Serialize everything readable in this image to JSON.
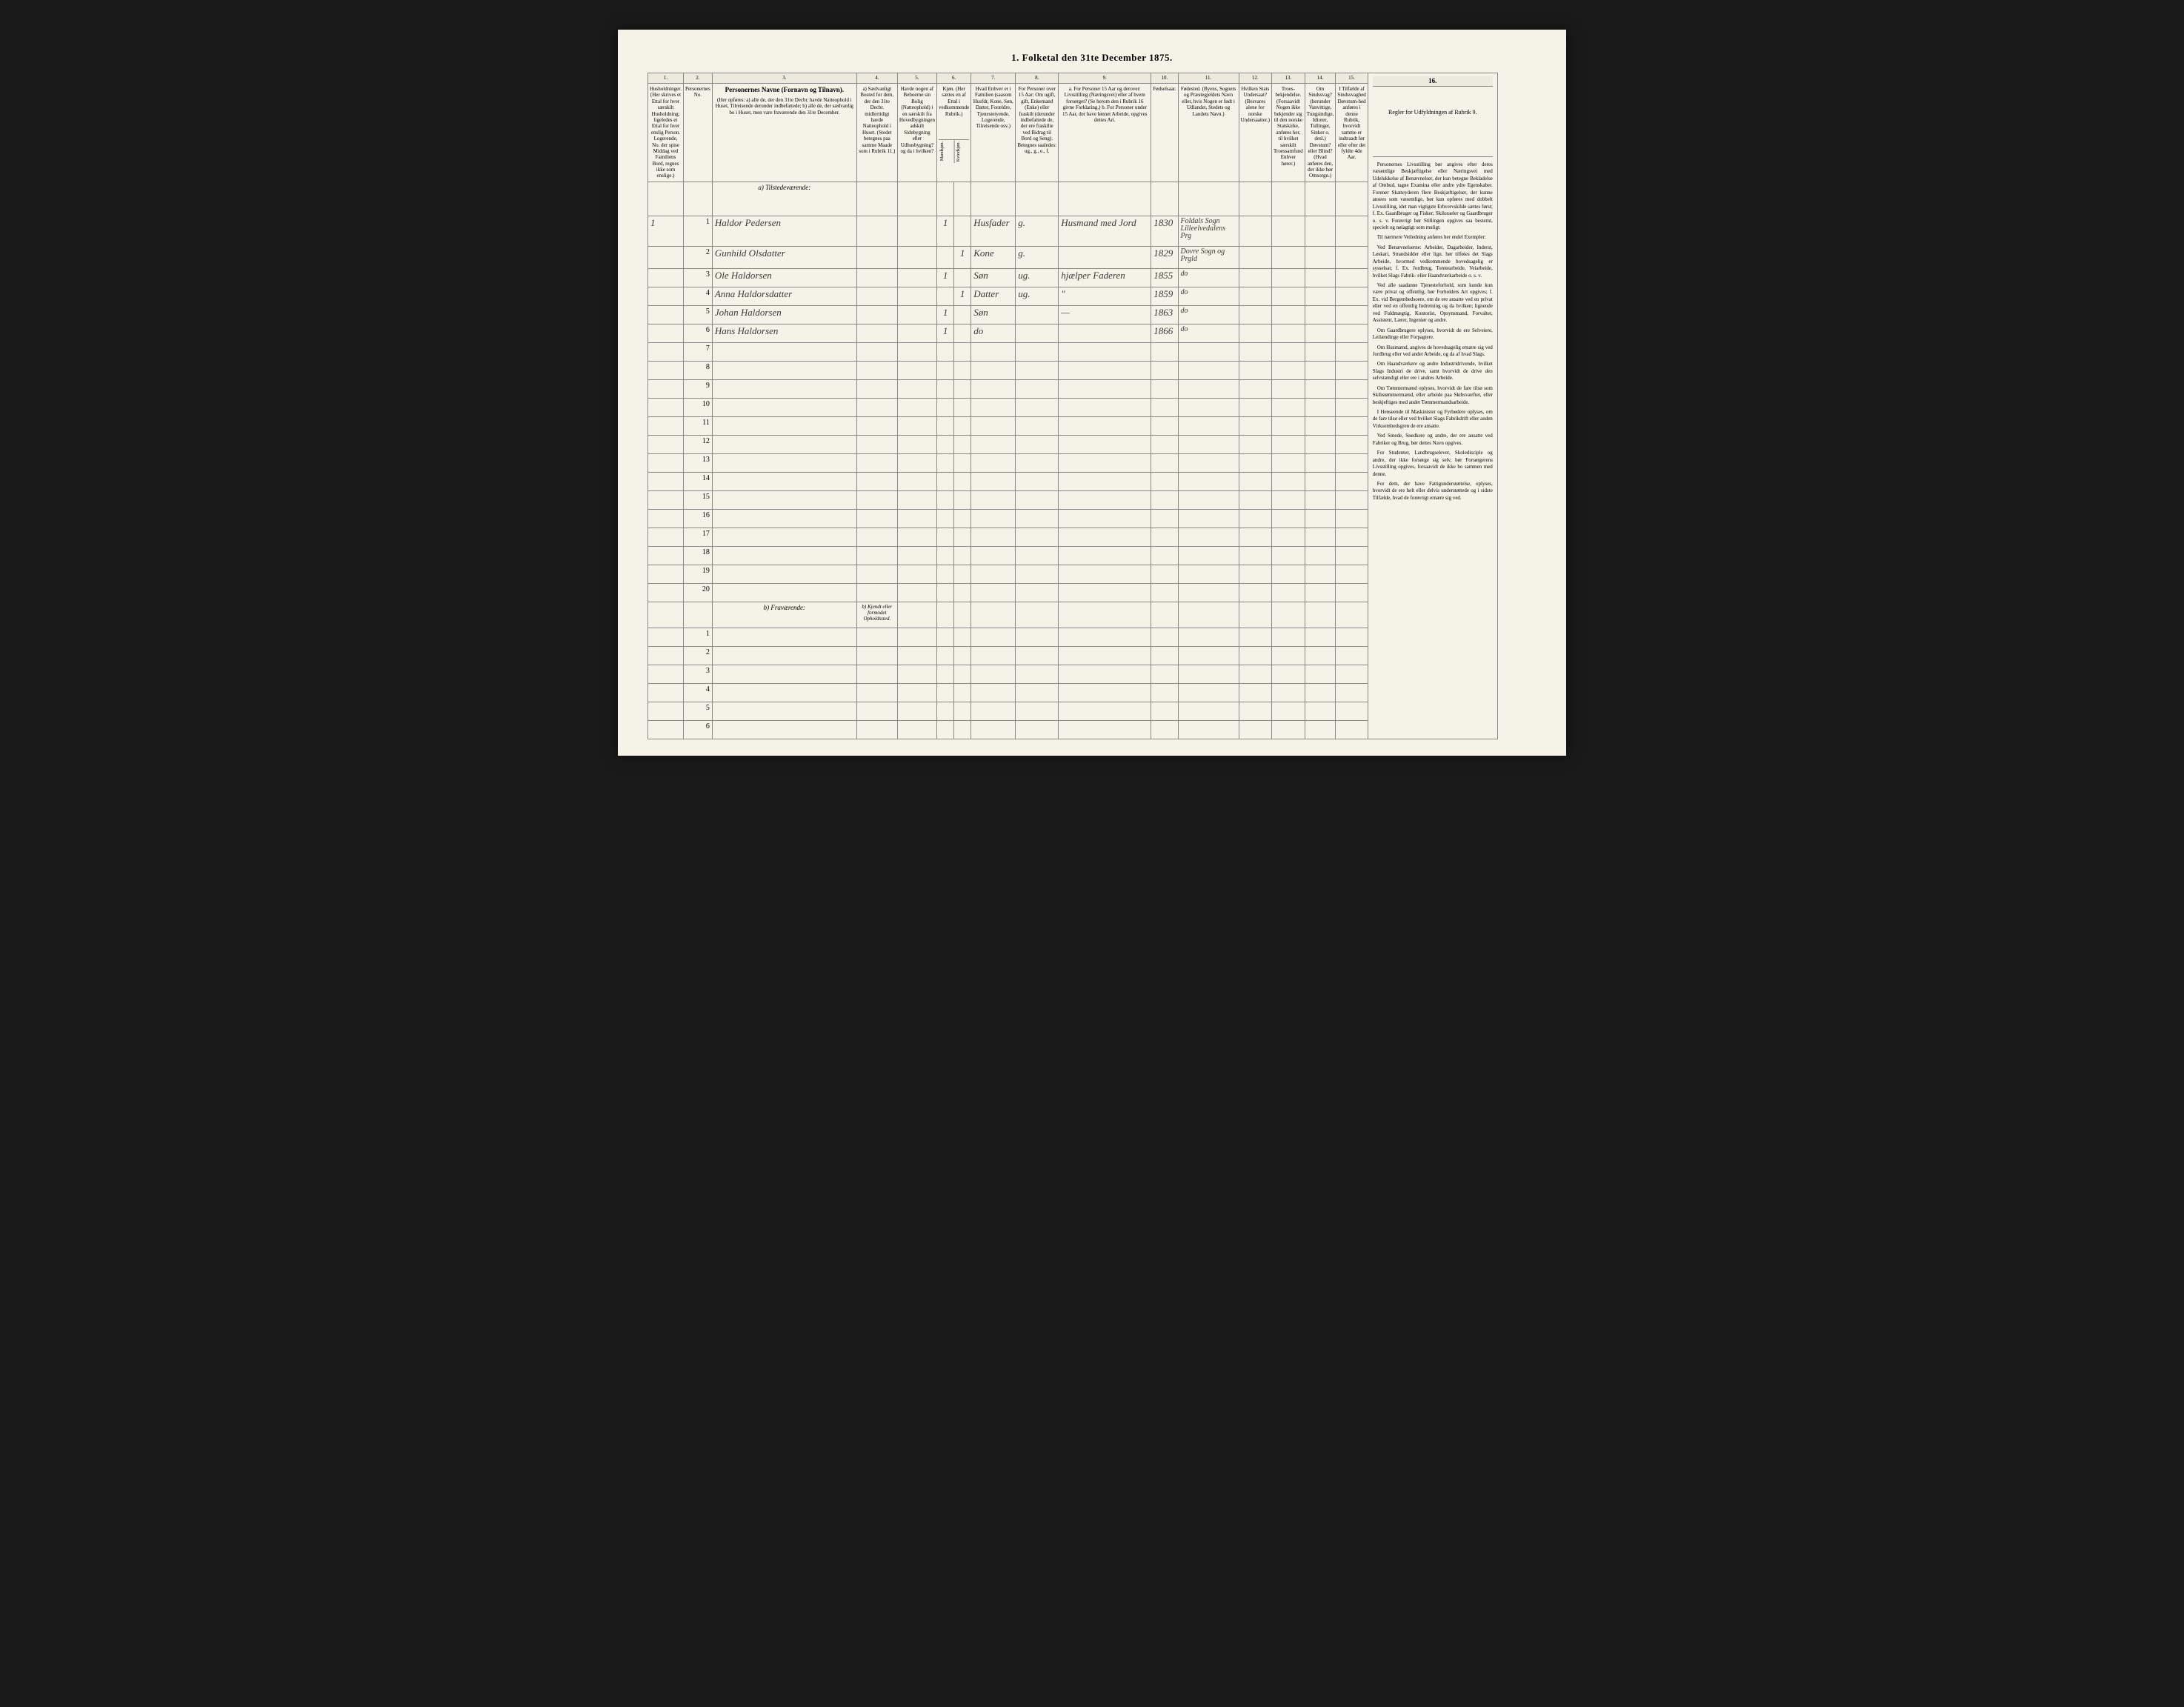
{
  "document": {
    "title": "1. Folketal den 31te December 1875.",
    "background_color": "#f5f2e8",
    "border_color": "#888888",
    "text_color": "#2a2a2a",
    "handwriting_color": "#3a3a3a"
  },
  "columns": {
    "numbers": [
      "1.",
      "2.",
      "3.",
      "4.",
      "5.",
      "6.",
      "7.",
      "8.",
      "9.",
      "10.",
      "11.",
      "12.",
      "13.",
      "14.",
      "15.",
      "16."
    ],
    "headers": {
      "col1": "Husholdninger. (Her skrives et Ettal for hver særskilt Husholdning; ligeledes et Ettal for hver enslig Person. Logerende, No. der spise Middag ved Familiens Bord, regnes ikke som enslige.)",
      "col2": "Personernes No.",
      "col3_title": "Personernes Navne (Fornavn og Tilnavn).",
      "col3_sub": "(Her opføres: a) alle de, der den 31te Decbr. havde Natteophold i Huset, Tilreisende derunder indbefattede; b) alle de, der sædvanlig bo i Huset, men vare fraværende den 31te December.",
      "col4": "a) Sædvanligt Bosted for dem, der den 31te Decbr. midlertidigt havde Natteophold i Huset. (Stedet betegnes paa samme Maade som i Rubrik 11.)",
      "col5": "Havde nogen af Beboerne sin Bolig (Natteophold) i en særskilt fra Hovedbygningen adskilt Sidebygning eller Udhusbygning? og da i hvilken?",
      "col6": "Kjøn. (Her sættes en af Ettal i vedkommende Rubrik.)",
      "col6_m": "Mandkjøn.",
      "col6_k": "Kvindkjøn.",
      "col7": "Hvad Enhver er i Familien (saasom Husfdr, Kone, Søn, Datter, Forældre, Tjenestetyende, Logerende, Tilreisende osv.)",
      "col8": "For Personer over 15 Aar: Om ugift, gift, Enkemand (Enke) eller fraskilt (derunder indbefattede de, der ere fraskilte ved Bidrag til Bord og Seng). Betegnes saaledes: ug., g., e., f.",
      "col9": "a. For Personer 15 Aar og derover: Livsstilling (Næringsvei) eller af hvem forsørget? (Se herom den i Rubrik 16 givne Forklaring.) b. For Personer under 15 Aar, der have lønnet Arbeide, opgives dettes Art.",
      "col10": "Fødselsaar.",
      "col11": "Fødested. (Byens, Sognets og Præstegjeldets Navn eller, hvis Nogen er født i Udlandet, Stedets og Landets Navn.)",
      "col12": "Hvilken Stats Undersaat? (Besvares alene for norske Undersaatter.)",
      "col13": "Troes-bekjendelse. (Forsaavidt Nogen ikke bekjender sig til den norske Statskirke, anføres her, til hvilket særskilt Troessamfund Enhver hører.)",
      "col14": "Om Sindssvag? (herunder Vanvittige, Tungsindige, Idioter, Tullinger, Sinker o. desl.) Døvstum? eller Blind? (Hvad anføres den, der ikke hør Omsorgn.)",
      "col15": "I Tilfælde af Sindssvaghed Døvstum-hed anføres i denne Rubrik, hvorvidt samme er indtraadt før eller efter det fyldte 4de Aar.",
      "col16": "Regler for Udfyldningen af Rubrik 9."
    }
  },
  "sections": {
    "present": "a) Tilstedeværende:",
    "absent": "b) Fraværende:",
    "absent_col4": "b) Kjendt eller formodet Opholdssted."
  },
  "persons": [
    {
      "row": 1,
      "hh": "1",
      "pno": "1",
      "name": "Haldor Pedersen",
      "sex_m": "1",
      "sex_k": "",
      "relation": "Husfader",
      "marital": "g.",
      "occupation": "Husmand med Jord",
      "birth": "1830",
      "birthplace": "Foldals Sogn Lilleelvedalens Prg"
    },
    {
      "row": 2,
      "hh": "",
      "pno": "2",
      "name": "Gunhild Olsdatter",
      "sex_m": "",
      "sex_k": "1",
      "relation": "Kone",
      "marital": "g.",
      "occupation": "",
      "birth": "1829",
      "birthplace": "Dovre Sogn og Prgld"
    },
    {
      "row": 3,
      "hh": "",
      "pno": "3",
      "name": "Ole Haldorsen",
      "sex_m": "1",
      "sex_k": "",
      "relation": "Søn",
      "marital": "ug.",
      "occupation": "hjælper Faderen",
      "birth": "1855",
      "birthplace": "do"
    },
    {
      "row": 4,
      "hh": "",
      "pno": "4",
      "name": "Anna Haldorsdatter",
      "sex_m": "",
      "sex_k": "1",
      "relation": "Datter",
      "marital": "ug.",
      "occupation": "\"",
      "birth": "1859",
      "birthplace": "do"
    },
    {
      "row": 5,
      "hh": "",
      "pno": "5",
      "name": "Johan Haldorsen",
      "sex_m": "1",
      "sex_k": "",
      "relation": "Søn",
      "marital": "",
      "occupation": "—",
      "birth": "1863",
      "birthplace": "do"
    },
    {
      "row": 6,
      "hh": "",
      "pno": "6",
      "name": "Hans Haldorsen",
      "sex_m": "1",
      "sex_k": "",
      "relation": "do",
      "marital": "",
      "occupation": "",
      "birth": "1866",
      "birthplace": "do"
    }
  ],
  "empty_rows_present": [
    7,
    8,
    9,
    10,
    11,
    12,
    13,
    14,
    15,
    16,
    17,
    18,
    19,
    20
  ],
  "empty_rows_absent": [
    1,
    2,
    3,
    4,
    5,
    6
  ],
  "rules_text": {
    "p1": "Personernes Livsstilling bør angives efter deres væsentlige Beskjæftigelse eller Næringsvei med Udelukkelse af Benævnelser, der kun betegne Bekladelse af Ombud, tagne Examina eller andre ydre Egenskaber. Forener Skatteyderen flere Beskjæftigelser, der kunne ansees som væsentlige, bør kun opføres med dobbelt Livsstilling, idet man vigtigste Erhvervskilde sættes først; f. Ex. Gaardbruger og Fisker; Skiloraeler og Gaardbruger o. s. v. Forøvrigt bør Stillingen opgives saa bestemt, specielt og nøiagtigt som muligt.",
    "p2": "Til nærmere Veiledning anføres her endel Exempler:",
    "p3": "Ved Benævnelserne: Arbeider, Dagarbeider, Inderst, Løskari, Strandsidder eller lign. hør tilføies det Slags Arbeide, hvormed vedkommende hovedsagelig er sysselsat; f. Ex. Jordbrug, Tomtearbeide, Veiarbeide, hvilket Slags Fabrik- eller Haandværkarbeide o. s. v.",
    "p4": "Ved alle saadanne Tjenesteforhold, som kunde kun være privat og offentlig, bør Forholdets Art opgives; f. Ex. vid Bergembedsoere, om de ere ansatte ved en privat eller ved en offentlig Indretning og da hvilken; lignende ved Fuldmægtig, Kontorist, Opsynsmand, Forvalter, Assistent, Lærer, Ingeniør og andre.",
    "p5": "Om Gaardbrugere oplyses, hvorvidt de ere Selveiere, Leilændinge eller Forpagtere.",
    "p6": "Om Husmænd, angives de hovedsagelig ernære sig ved Jordbrug eller ved andet Arbeide, og da af hvad Slags.",
    "p7": "Om Haandværkere og andre Industridrivende, hvilket Slags Industri de drive, samt hvorvidt de drive den selvstændigt eller ere i andres Arbeide.",
    "p8": "Om Tømmermænd oplyses, hvorvidt de fare tilsø som Skibstømmermænd, eller arbeide paa Skibsværfter, eller beskjeftiges med andet Tømmermandsarbeide.",
    "p9": "I Henseende til Maskinister og Fyrbødere oplyses, om de fare tilsø eller ved hvilket Slags Fabrikdrift eller anden Virksomhedsgren de ere ansatte.",
    "p10": "Ved Smede, Snedkere og andre, der ere ansatte ved Fabriker og Brug, bør dettes Navn opgives.",
    "p11": "For Studenter, Landbrugselever, Skoledisciple og andre, der ikke forsørge sig selv, bør Forsørgerens Livsstilling opgives, forsaavidt de ikke bo sammen med denne.",
    "p12": "For dem, der have Fattigunderstøttelse, oplyses, hvorvidt de ere helt eller delvis understøttede og i sidste Tilfælde, hvad de forøvrigt ernære sig ved."
  }
}
